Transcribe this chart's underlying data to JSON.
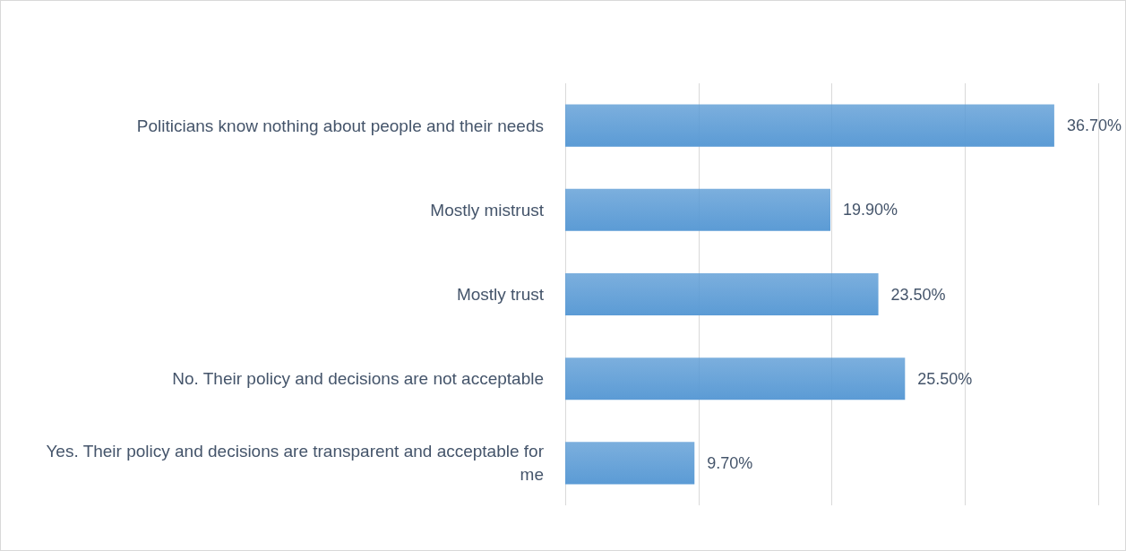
{
  "chart_data": {
    "type": "bar",
    "orientation": "horizontal",
    "categories": [
      "Politicians know nothing about people and their needs",
      "Mostly mistrust",
      "Mostly trust",
      "No. Their policy and decisions are not acceptable",
      "Yes. Their policy and decisions are transparent and acceptable for me"
    ],
    "values": [
      36.7,
      19.9,
      23.5,
      25.5,
      9.7
    ],
    "value_labels": [
      "36.70%",
      "19.90%",
      "23.50%",
      "25.50%",
      "9.70%"
    ],
    "color": "#5b9bd5",
    "xlim": [
      0,
      40
    ],
    "xticks": [
      {
        "value": 0,
        "label": null
      },
      {
        "value": 10,
        "label": null
      },
      {
        "value": 20,
        "label": null
      },
      {
        "value": 30,
        "label": null
      },
      {
        "value": 40,
        "label": null
      }
    ],
    "grid": "x",
    "tick_labels": "y"
  }
}
